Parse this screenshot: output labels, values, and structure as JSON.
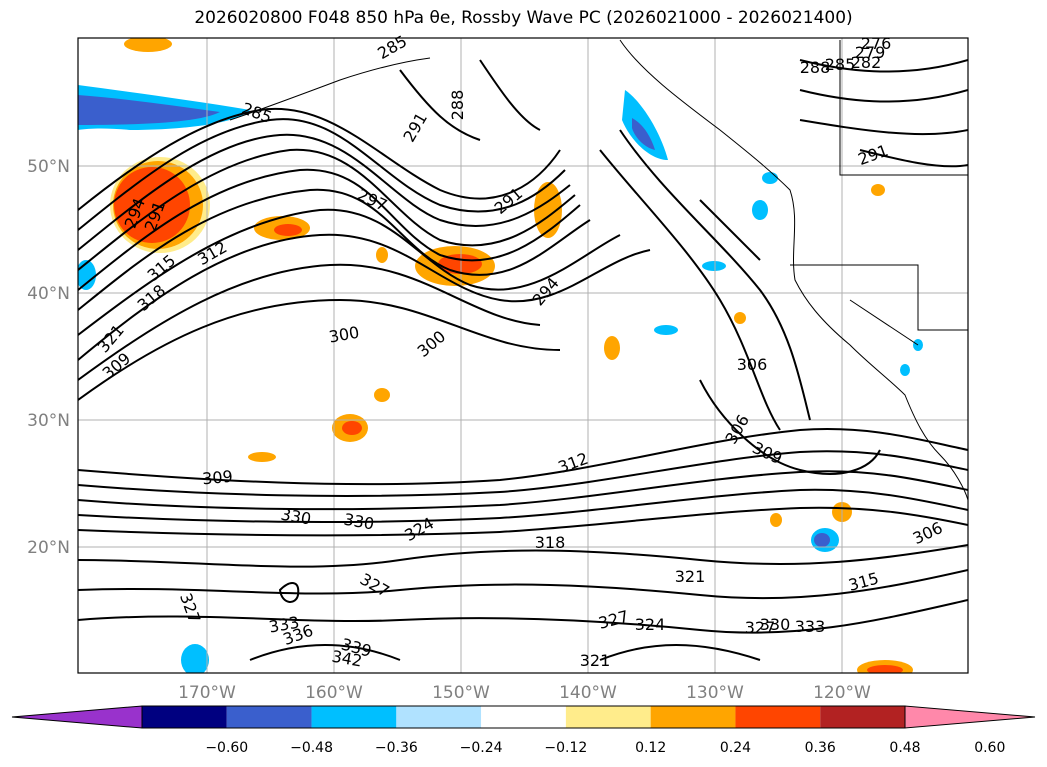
{
  "title": "2026020800 F048 850 hPa θe, Rossby Wave PC (2026021000 - 2026021400)",
  "latitude_labels": [
    "50°N",
    "40°N",
    "30°N",
    "20°N"
  ],
  "longitude_labels": [
    "170°W",
    "160°W",
    "150°W",
    "140°W",
    "130°W",
    "120°W"
  ],
  "contour_labels": [
    "276",
    "279",
    "282",
    "285",
    "288",
    "285",
    "285",
    "291",
    "288",
    "291",
    "297",
    "291",
    "294",
    "291",
    "294",
    "312",
    "315",
    "318",
    "321",
    "309",
    "300",
    "300",
    "306",
    "306",
    "309",
    "309",
    "312",
    "318",
    "330",
    "330",
    "324",
    "327",
    "321",
    "315",
    "306",
    "327",
    "333",
    "336",
    "339",
    "342",
    "327",
    "324",
    "330",
    "333",
    "327",
    "321"
  ],
  "colorbar": {
    "tick_labels": [
      "−0.60",
      "−0.48",
      "−0.36",
      "−0.24",
      "−0.12",
      "0.12",
      "0.24",
      "0.36",
      "0.48",
      "0.60"
    ],
    "colors": [
      "#9932cc",
      "#000080",
      "#3a5fcd",
      "#00bfff",
      "#b0e2ff",
      "#ffffff",
      "#ffec8b",
      "#ffa500",
      "#ff4500",
      "#b22222",
      "#ff88aa"
    ]
  }
}
